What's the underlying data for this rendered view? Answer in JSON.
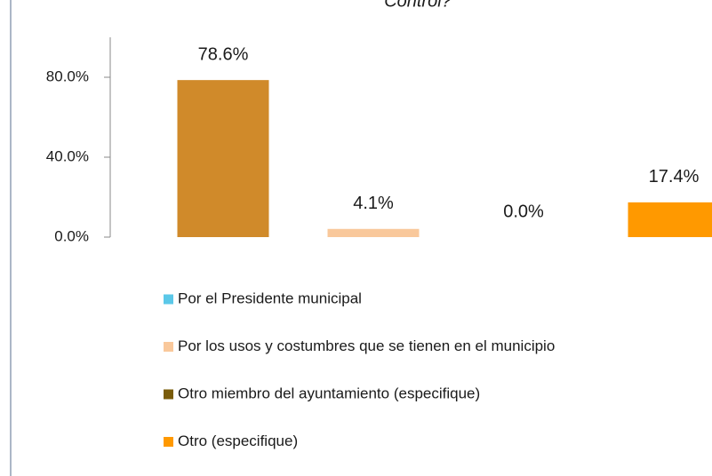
{
  "chart_data": {
    "type": "bar",
    "title": "Control?",
    "series": [
      {
        "name": "Por el Presidente municipal",
        "color": "#5BC8E8",
        "values": [
          78.6
        ],
        "value_labels": [
          "78.6%"
        ],
        "bar_color": "#D08A2A"
      },
      {
        "name": "Por los usos y costumbres que se tienen en el municipio",
        "color": "#F9C89B",
        "values": [
          4.1
        ],
        "value_labels": [
          "4.1%"
        ],
        "bar_color": "#F9C89B"
      },
      {
        "name": "Otro miembro del ayuntamiento (especifique)",
        "color": "#7A5C0A",
        "values": [
          0.0
        ],
        "value_labels": [
          "0.0%"
        ],
        "bar_color": "#7A5C0A"
      },
      {
        "name": "Otro (especifique)",
        "color": "#FF9900",
        "values": [
          17.4
        ],
        "value_labels": [
          "17.4%"
        ],
        "bar_color": "#FF9900"
      }
    ],
    "ylim": [
      0,
      100
    ],
    "yticks": [
      {
        "value": 0,
        "label": "0.0%"
      },
      {
        "value": 40,
        "label": "40.0%"
      },
      {
        "value": 80,
        "label": "80.0%"
      }
    ],
    "legend": "bottom"
  }
}
